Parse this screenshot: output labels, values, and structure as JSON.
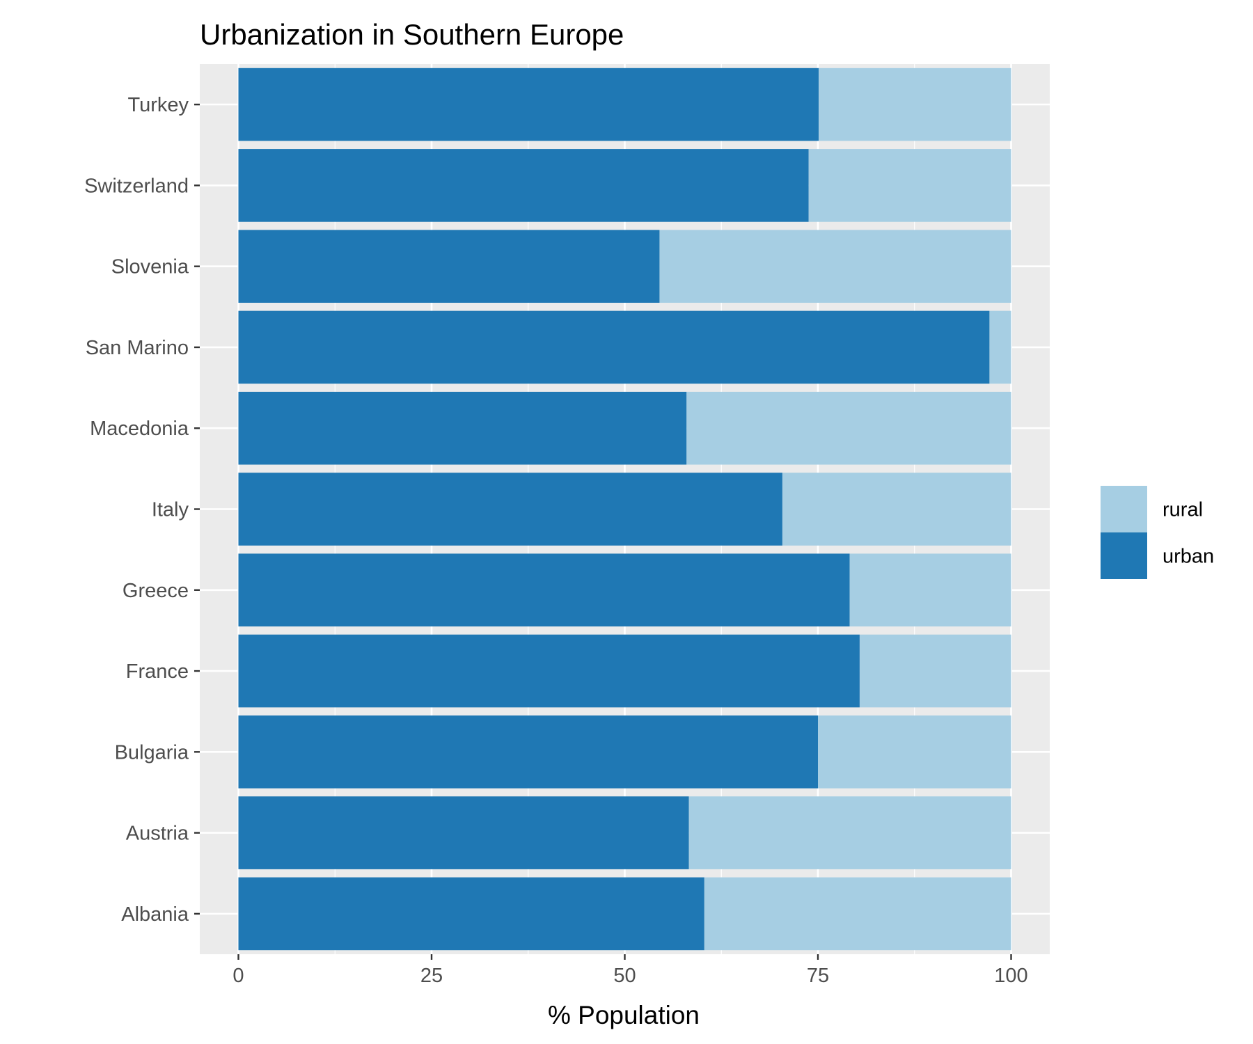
{
  "chart_data": {
    "type": "bar",
    "orientation": "horizontal",
    "stacked": true,
    "title": "Urbanization in Southern Europe",
    "xlabel": "% Population",
    "ylabel": "",
    "xlim": [
      -5,
      105
    ],
    "xticks": [
      "0",
      "25",
      "50",
      "75",
      "100"
    ],
    "grid": true,
    "legend_position": "right",
    "categories": [
      "Albania",
      "Austria",
      "Bulgaria",
      "France",
      "Greece",
      "Italy",
      "Macedonia",
      "San Marino",
      "Slovenia",
      "Switzerland",
      "Turkey"
    ],
    "series": [
      {
        "name": "urban",
        "color": "#1f78b4",
        "values": [
          60.3,
          58.3,
          75.0,
          80.4,
          79.1,
          70.4,
          58.0,
          97.2,
          54.5,
          73.8,
          75.1
        ]
      },
      {
        "name": "rural",
        "color": "#a6cee3",
        "values": [
          39.7,
          41.7,
          25.0,
          19.6,
          20.9,
          29.6,
          42.0,
          2.8,
          45.5,
          26.2,
          24.9
        ]
      }
    ],
    "legend_order": [
      "rural",
      "urban"
    ],
    "panel_color": "#ebebeb",
    "grid_color": "#ffffff"
  }
}
